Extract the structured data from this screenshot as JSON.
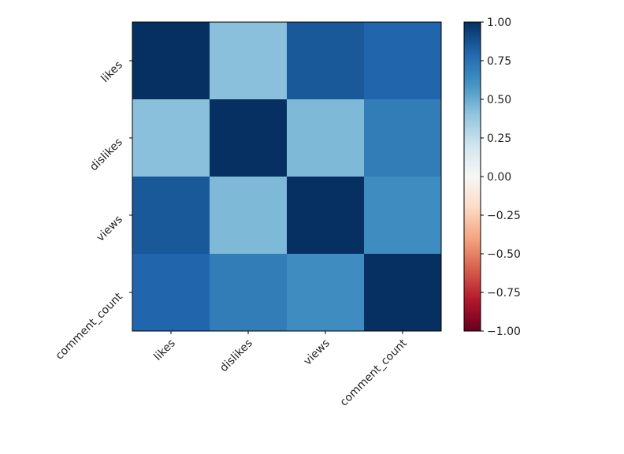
{
  "chart_data": {
    "type": "heatmap",
    "title": "",
    "xlabel": "",
    "ylabel": "",
    "row_labels": [
      "likes",
      "dislikes",
      "views",
      "comment_count"
    ],
    "col_labels": [
      "likes",
      "dislikes",
      "views",
      "comment_count"
    ],
    "values": [
      [
        1.0,
        0.42,
        0.85,
        0.8
      ],
      [
        0.42,
        1.0,
        0.45,
        0.7
      ],
      [
        0.85,
        0.45,
        1.0,
        0.63
      ],
      [
        0.8,
        0.7,
        0.63,
        1.0
      ]
    ],
    "colormap": "RdBu",
    "vmin": -1.0,
    "vmax": 1.0,
    "colorbar": {
      "ticks": [
        1.0,
        0.75,
        0.5,
        0.25,
        0.0,
        -0.25,
        -0.5,
        -0.75,
        -1.0
      ],
      "tick_labels": [
        "1.00",
        "0.75",
        "0.50",
        "0.25",
        "0.00",
        "−0.25",
        "−0.50",
        "−0.75",
        "−1.00"
      ]
    },
    "colormap_stops": [
      "#67001f",
      "#b2182b",
      "#d6604d",
      "#f4a582",
      "#fddbc7",
      "#f7f7f7",
      "#d1e5f0",
      "#92c5de",
      "#4393c3",
      "#2166ac",
      "#053061"
    ]
  }
}
